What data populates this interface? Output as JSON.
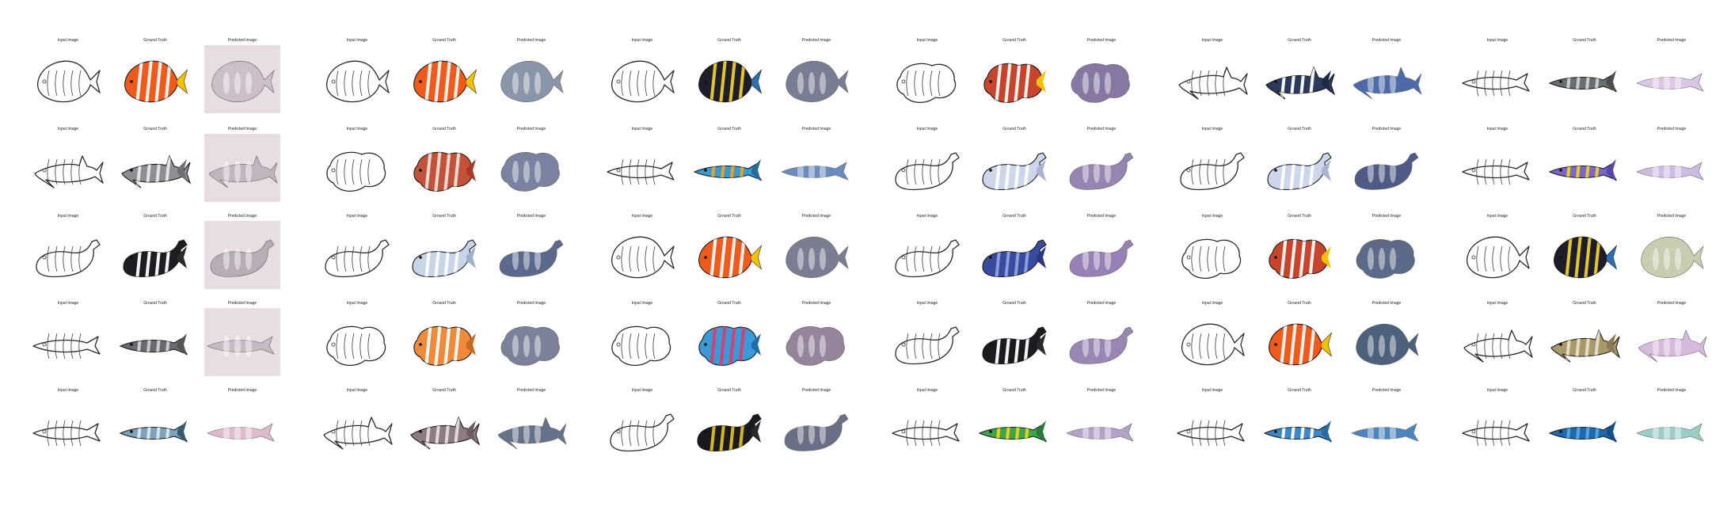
{
  "figure": {
    "background": "#ffffff",
    "predicted_tint": "#e9dde4",
    "titles": {
      "input": "Input Image",
      "truth": "Ground Truth",
      "pred": "Predicted Image",
      "pred_alt": "Predicted Image"
    },
    "panels": [
      {
        "rows": [
          {
            "shape": "round",
            "fill": "#f05a1a",
            "accent": "#ffffff",
            "fin": "#f2c200",
            "pred_fill": "#c9bcc4",
            "tint": true
          },
          {
            "shape": "shark",
            "fill": "#8f8f93",
            "accent": "#e8e8ea",
            "fin": "#6f6f74",
            "pred_fill": "#bdb2ba",
            "tint": true
          },
          {
            "shape": "whale",
            "fill": "#1e1e22",
            "accent": "#ffffff",
            "fin": "#2a2a2e",
            "pred_fill": "#b2a8b0",
            "tint": true
          },
          {
            "shape": "long",
            "fill": "#6a6a70",
            "accent": "#cfcfd3",
            "fin": "#55555a",
            "pred_fill": "#c4b8c0",
            "tint": true
          },
          {
            "shape": "long",
            "fill": "#7fa3b8",
            "accent": "#dbe8ee",
            "fin": "#3b5a70",
            "pred_fill": "#d9b4c8",
            "tint": false
          }
        ]
      },
      {
        "rows": [
          {
            "shape": "round",
            "fill": "#f05a1a",
            "accent": "#ffffff",
            "fin": "#f2c200",
            "pred_fill": "#7d8aa0",
            "tint": false
          },
          {
            "shape": "blob",
            "fill": "#c4523a",
            "accent": "#f3e4dc",
            "fin": "#a63a26",
            "pred_fill": "#6b7596",
            "tint": false
          },
          {
            "shape": "whale",
            "fill": "#c8d4e8",
            "accent": "#ffffff",
            "fin": "#9fb0cc",
            "pred_fill": "#4a5a80",
            "tint": false
          },
          {
            "shape": "blob",
            "fill": "#ee8a3a",
            "accent": "#ffffff",
            "fin": "#c66a20",
            "pred_fill": "#6e7490",
            "tint": false
          },
          {
            "shape": "shark",
            "fill": "#8e7c80",
            "accent": "#e6dfe0",
            "fin": "#6e5e62",
            "pred_fill": "#56637e",
            "tint": false
          }
        ]
      },
      {
        "rows": [
          {
            "shape": "round",
            "fill": "#1d1d2b",
            "accent": "#f0d02a",
            "fin": "#2e6fb0",
            "pred_fill": "#6b6f88",
            "tint": false
          },
          {
            "shape": "long",
            "fill": "#3a9ad0",
            "accent": "#f0a020",
            "fin": "#2a6a9a",
            "pred_fill": "#5c7fb8",
            "tint": false
          },
          {
            "shape": "round",
            "fill": "#f05a1a",
            "accent": "#ffffff",
            "fin": "#f2c200",
            "pred_fill": "#6d6f88",
            "tint": false
          },
          {
            "shape": "blob",
            "fill": "#3a9ad8",
            "accent": "#e23a6a",
            "fin": "#1f6ca8",
            "pred_fill": "#8a7890",
            "tint": false
          },
          {
            "shape": "whale",
            "fill": "#1a1a1e",
            "accent": "#e0c020",
            "fin": "#2a2a2e",
            "pred_fill": "#5a6078",
            "tint": false
          }
        ]
      },
      {
        "rows": [
          {
            "shape": "blob",
            "fill": "#c8442a",
            "accent": "#ffffff",
            "fin": "#f2c200",
            "pred_fill": "#7a6a98",
            "tint": false
          },
          {
            "shape": "whale",
            "fill": "#cdd6ea",
            "accent": "#ffffff",
            "fin": "#a8b4d0",
            "pred_fill": "#8a78a8",
            "tint": false
          },
          {
            "shape": "whale",
            "fill": "#3a4aa0",
            "accent": "#8ea2e0",
            "fin": "#2a3680",
            "pred_fill": "#8c74b0",
            "tint": false
          },
          {
            "shape": "whale",
            "fill": "#1c1c20",
            "accent": "#ffffff",
            "fin": "#2a2a2e",
            "pred_fill": "#8e7aaa",
            "tint": false
          },
          {
            "shape": "long",
            "fill": "#3aa84a",
            "accent": "#f0d020",
            "fin": "#2a7a3a",
            "pred_fill": "#a998c0",
            "tint": false
          }
        ]
      },
      {
        "rows": [
          {
            "shape": "shark",
            "fill": "#2c3a5a",
            "accent": "#ffffff",
            "fin": "#1c2a48",
            "pred_fill": "#3a5aa0",
            "tint": false
          },
          {
            "shape": "whale",
            "fill": "#cdd6ea",
            "accent": "#ffffff",
            "fin": "#a8b4d0",
            "pred_fill": "#3c4a7a",
            "tint": false
          },
          {
            "shape": "blob",
            "fill": "#c8442a",
            "accent": "#ffffff",
            "fin": "#f2c200",
            "pred_fill": "#4a5a7c",
            "tint": false
          },
          {
            "shape": "round",
            "fill": "#f05a1a",
            "accent": "#ffffff",
            "fin": "#f2c200",
            "pred_fill": "#3a5070",
            "tint": false
          },
          {
            "shape": "long",
            "fill": "#3a88c8",
            "accent": "#ffffff",
            "fin": "#2a6aa0",
            "pred_fill": "#3a78b8",
            "tint": false
          }
        ]
      },
      {
        "rows": [
          {
            "shape": "long",
            "fill": "#6a6e70",
            "accent": "#cfd2d4",
            "fin": "#4a4e50",
            "pred_fill": "#d8c2e0",
            "tint": false
          },
          {
            "shape": "long",
            "fill": "#7a66c8",
            "accent": "#f0d020",
            "fin": "#5a48a8",
            "pred_fill": "#c8b4e0",
            "tint": false
          },
          {
            "shape": "round",
            "fill": "#1d1d2b",
            "accent": "#f0d02a",
            "fin": "#2e6fb0",
            "pred_fill": "#c4c8a8",
            "tint": false
          },
          {
            "shape": "shark",
            "fill": "#a89a6a",
            "accent": "#e8e0c8",
            "fin": "#8a7c50",
            "pred_fill": "#d0b4d8",
            "tint": false
          },
          {
            "shape": "long",
            "fill": "#1e6ab0",
            "accent": "#5aa8e0",
            "fin": "#14508a",
            "pred_fill": "#8ec8c0",
            "tint": false
          }
        ]
      }
    ]
  }
}
